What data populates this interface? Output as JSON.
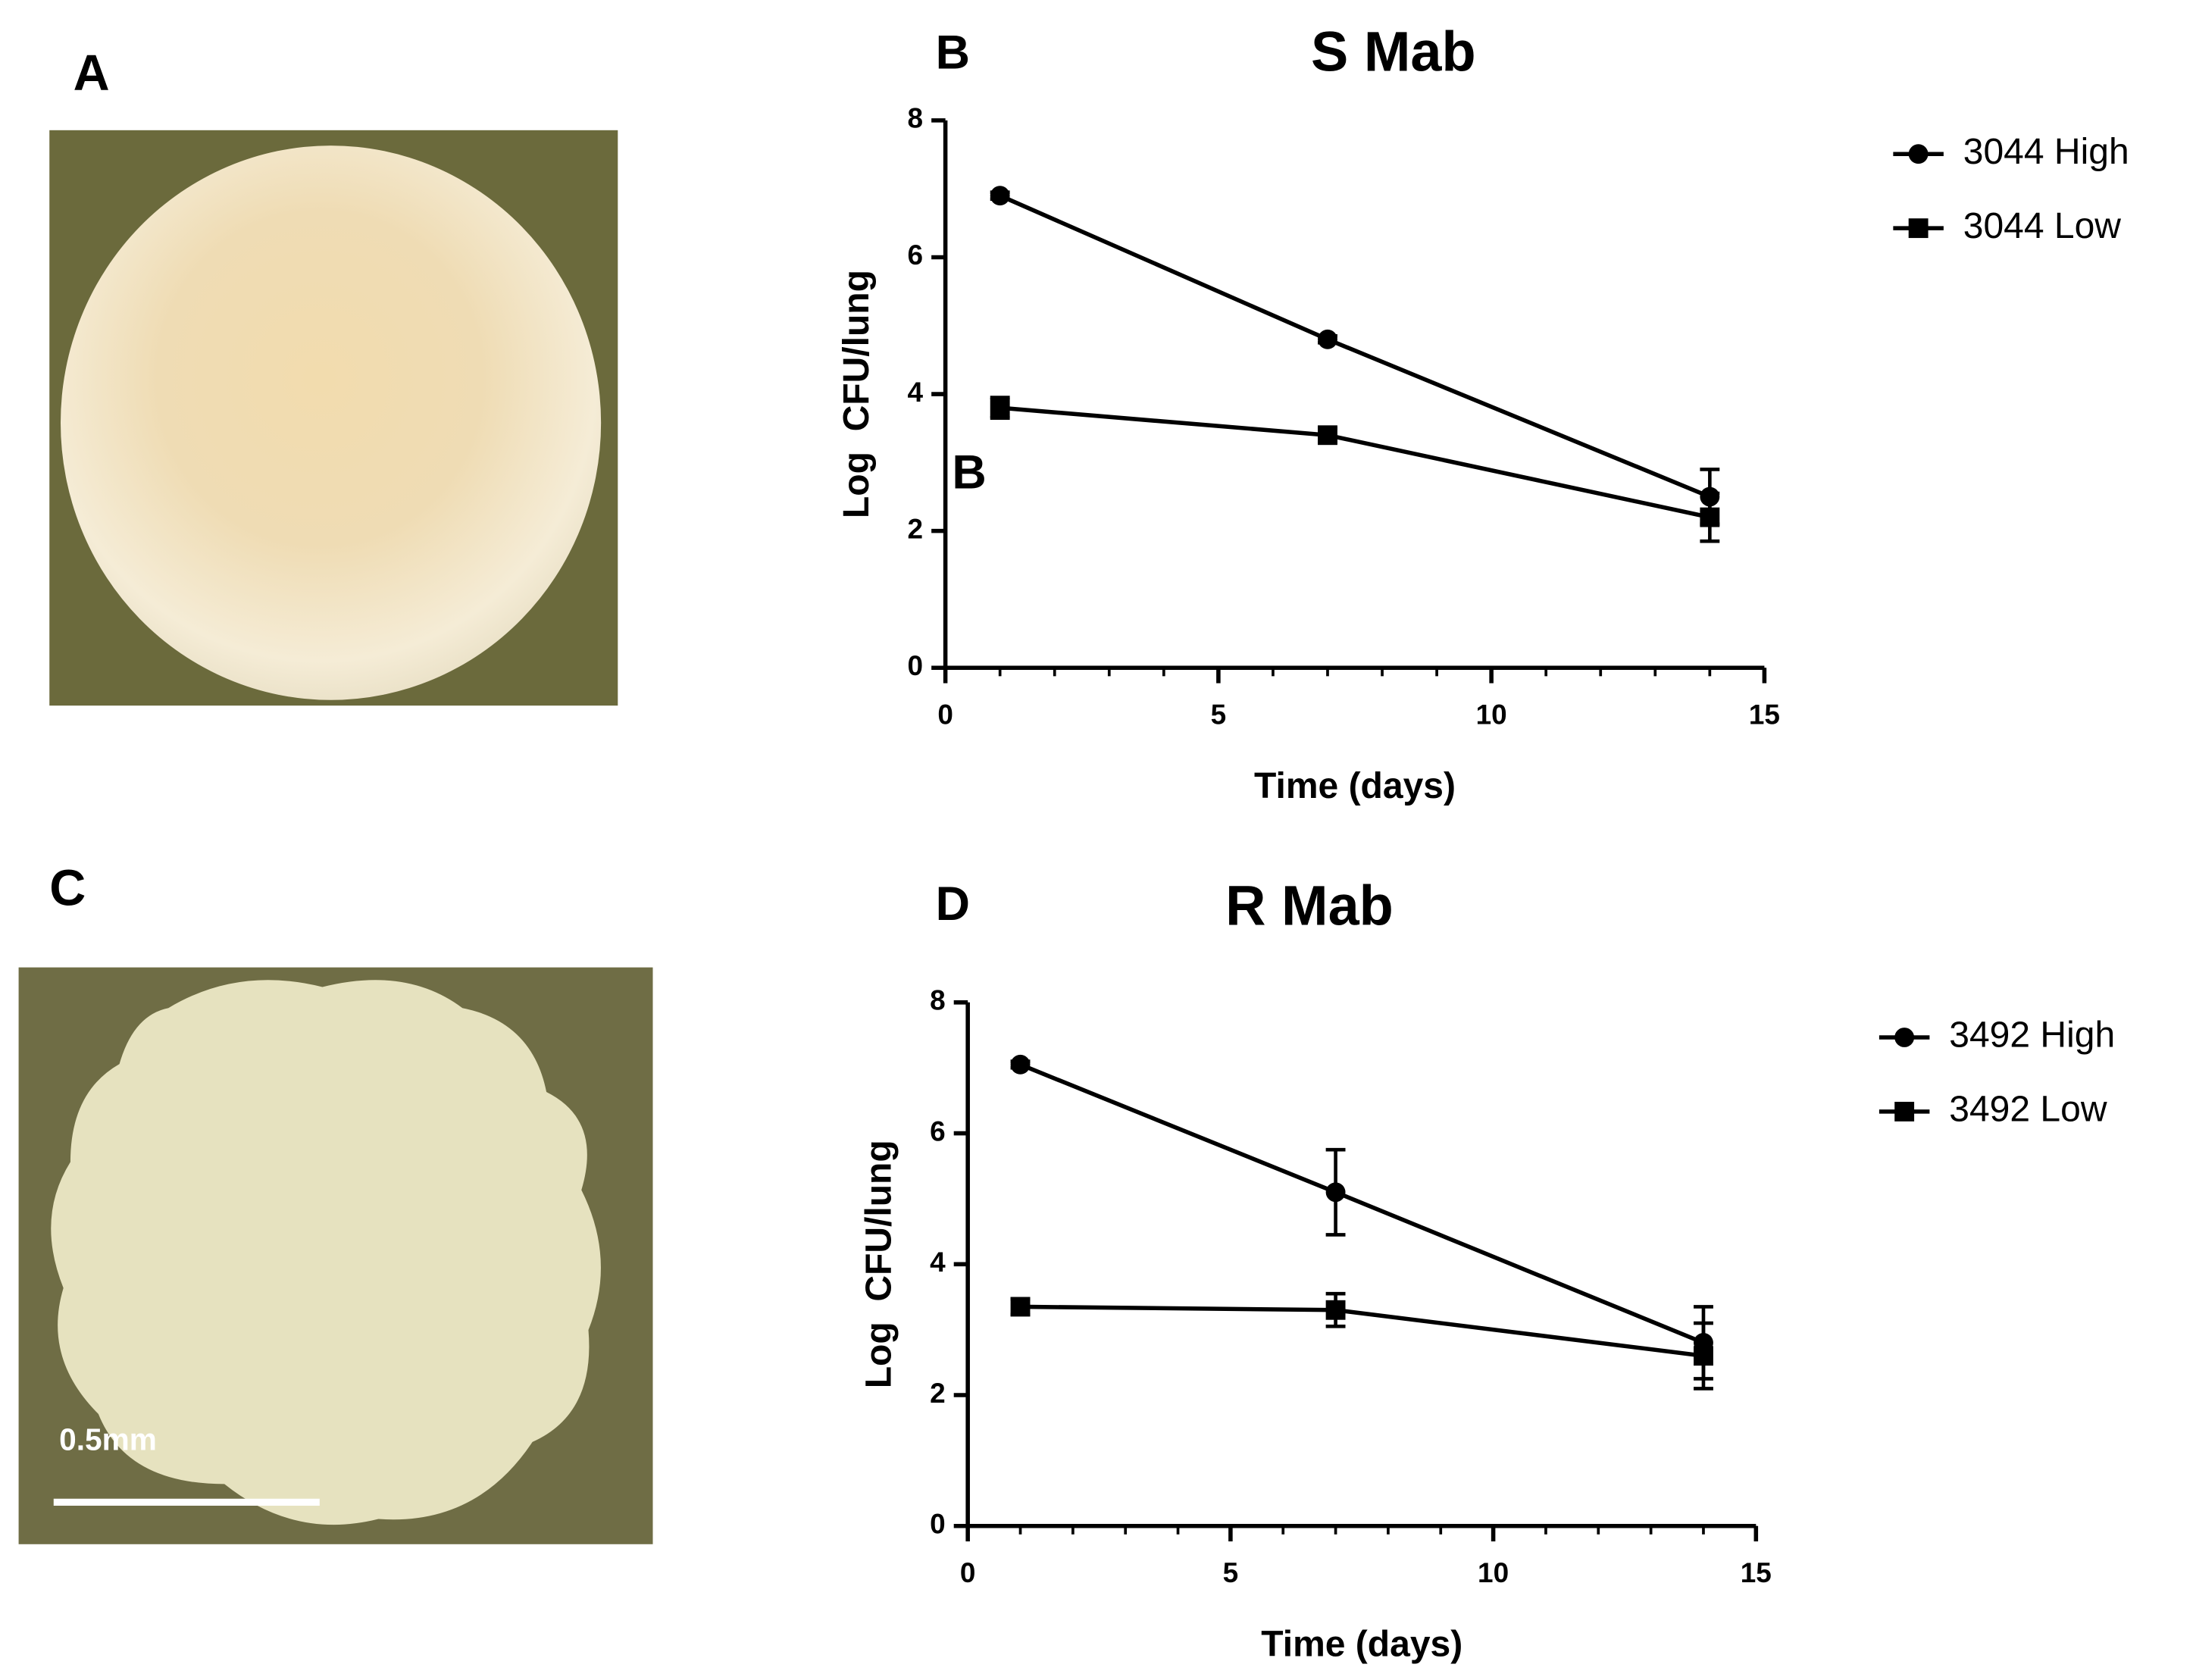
{
  "panels": {
    "A": "A",
    "C": "C",
    "scale_bar": "0.5mm"
  },
  "chart_data": [
    {
      "type": "line",
      "panel_label": "B",
      "title": "S Mab",
      "annotation": "B",
      "xlabel": "Time (days)",
      "ylabel": "Log  CFU/lung",
      "x": [
        1,
        7,
        14
      ],
      "xlim": [
        0,
        15
      ],
      "xticks": [
        0,
        5,
        10,
        15
      ],
      "xminor": 1,
      "ylim": [
        0,
        8
      ],
      "yticks": [
        0,
        2,
        4,
        6,
        8
      ],
      "series": [
        {
          "name": "3044 High",
          "color": "#000000",
          "marker": "circle",
          "values": [
            6.9,
            4.8,
            2.5
          ],
          "errors": [
            0.05,
            0.05,
            0.4
          ]
        },
        {
          "name": "3044 Low",
          "color": "#000000",
          "marker": "square",
          "values": [
            3.8,
            3.4,
            2.2
          ],
          "errors": [
            0.15,
            0.1,
            0.35
          ]
        }
      ]
    },
    {
      "type": "line",
      "panel_label": "D",
      "title": "R Mab",
      "xlabel": "Time (days)",
      "ylabel": "Log  CFU/lung",
      "x": [
        1,
        7,
        14
      ],
      "xlim": [
        0,
        15
      ],
      "xticks": [
        0,
        5,
        10,
        15
      ],
      "xminor": 1,
      "ylim": [
        0,
        8
      ],
      "yticks": [
        0,
        2,
        4,
        6,
        8
      ],
      "series": [
        {
          "name": "3492 High",
          "color": "#000000",
          "marker": "circle",
          "values": [
            7.05,
            5.1,
            2.8
          ],
          "errors": [
            0.05,
            0.65,
            0.55
          ]
        },
        {
          "name": "3492 Low",
          "color": "#000000",
          "marker": "square",
          "values": [
            3.35,
            3.3,
            2.6
          ],
          "errors": [
            0.12,
            0.25,
            0.5
          ]
        }
      ]
    }
  ]
}
